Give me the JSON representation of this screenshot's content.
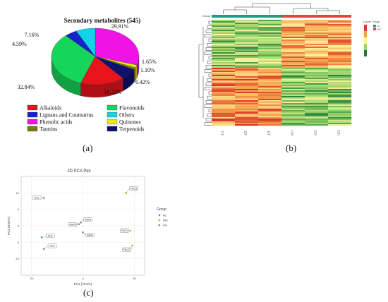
{
  "chart_data": [
    {
      "type": "pie",
      "title": "Secondary metabolites (545)",
      "labels": [
        "Alkaloids",
        "Flavonoids",
        "Lignans and Coumarins",
        "Others",
        "Phenolic acids",
        "Quinones",
        "Tannins",
        "Terpenoids"
      ],
      "values": [
        16.33,
        32.84,
        4.59,
        7.16,
        29.91,
        1.65,
        1.1,
        6.42
      ],
      "value_labels": [
        "16.33%",
        "32.84%",
        "4.59%",
        "7.16%",
        "29.91%",
        "1.65%",
        "1.10%",
        "6.42%"
      ],
      "colors": [
        "#e8141b",
        "#16d65a",
        "#1424c8",
        "#10d4e8",
        "#ee14e8",
        "#e8e814",
        "#7a7a12",
        "#10106e"
      ],
      "legend_position": "bottom"
    },
    {
      "type": "heatmap",
      "columns": [
        "AC1",
        "AC2",
        "AC3",
        "FAC1",
        "FAC2",
        "FAC3"
      ],
      "legend_title_zscore": "Z-score",
      "legend_title_group": "Group",
      "group_header": "Group",
      "group_items": [
        "AC",
        "FAC"
      ],
      "color_scale": [
        "#1e7a3c",
        "#9cd66a",
        "#fff3a0",
        "#f7a24a",
        "#d9352a"
      ]
    },
    {
      "type": "scatter",
      "title": "2D PCA Plot",
      "xlabel": "PC1 (70.6%)",
      "ylabel": "PC2 (8.52%)",
      "xlim": [
        -30,
        30
      ],
      "ylim": [
        -15,
        15
      ],
      "xticks": [
        "-25",
        "0",
        "25"
      ],
      "yticks": [
        "10",
        "5",
        "0",
        "-5",
        "-10"
      ],
      "legend_title": "Group",
      "legend_position": "right",
      "series": [
        {
          "name": "AC",
          "color": "#3a8fd8",
          "points": [
            {
              "label": "AC1",
              "x": -19,
              "y": 8.5
            },
            {
              "label": "AC2",
              "x": -20,
              "y": -3.5
            },
            {
              "label": "AC3",
              "x": -19,
              "y": -7
            }
          ]
        },
        {
          "name": "FAC",
          "color": "#e0a020",
          "points": [
            {
              "label": "FAC1",
              "x": 23,
              "y": -1.5
            },
            {
              "label": "FAC2",
              "x": 24,
              "y": -6
            },
            {
              "label": "FAC3",
              "x": 21,
              "y": 10
            }
          ]
        },
        {
          "name": "mix",
          "color": "#7a8a6a",
          "points": [
            {
              "label": "mix01",
              "x": -1,
              "y": 1
            },
            {
              "label": "mix02",
              "x": 0,
              "y": -2
            },
            {
              "label": "mix03",
              "x": -2,
              "y": 0.5
            }
          ]
        }
      ]
    }
  ],
  "panels": {
    "a": "(a)",
    "b": "(b)",
    "c": "(c)"
  }
}
